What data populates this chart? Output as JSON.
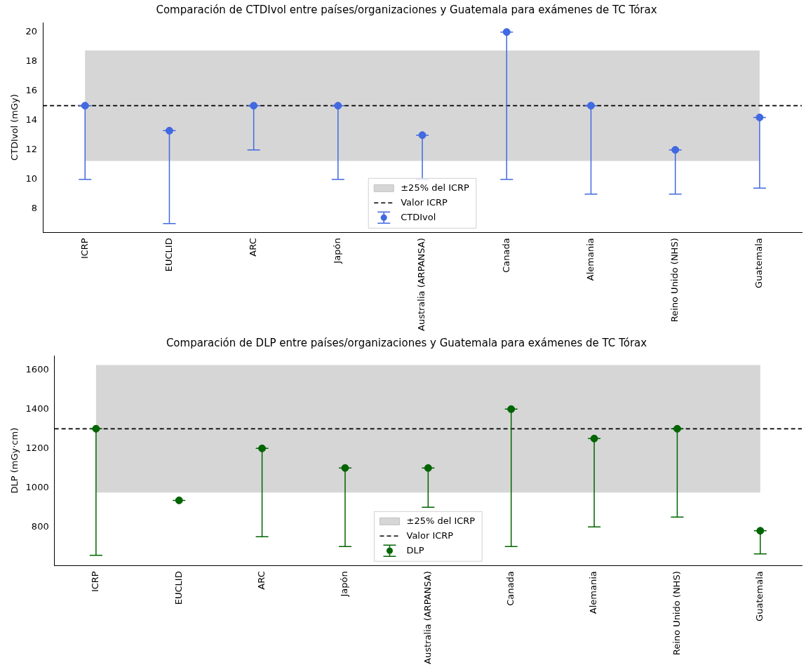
{
  "chart_data": [
    {
      "type": "scatter",
      "title": "Comparación de CTDIvol entre países/organizaciones y Guatemala para exámenes de TC Tórax",
      "ylabel": "CTDIvol (mGy)",
      "categories": [
        "ICRP",
        "EUCLID",
        "ARC",
        "Japón",
        "Australia (ARPANSA)",
        "Canada",
        "Alemania",
        "Reino Unido (NHS)",
        "Guatemala"
      ],
      "series": [
        {
          "name": "CTDIvol",
          "color": "#4169e1",
          "values": [
            15,
            13.3,
            15,
            15,
            13,
            20,
            15,
            12,
            14.2
          ],
          "errors": [
            [
              10,
              15
            ],
            [
              7,
              13.3
            ],
            [
              12,
              15
            ],
            [
              10,
              15
            ],
            [
              10,
              13
            ],
            [
              10,
              20
            ],
            [
              9,
              15
            ],
            [
              9,
              12
            ],
            [
              9.4,
              14.2
            ]
          ]
        }
      ],
      "ylim": [
        6.4,
        20.65
      ],
      "yticks": [
        8,
        10,
        12,
        14,
        16,
        18,
        20
      ],
      "bands": [
        {
          "axis": "y",
          "from": 11.25,
          "to": 18.75,
          "label": "±25% del ICRP",
          "color": "#d6d6d6"
        }
      ],
      "ref_lines": [
        {
          "axis": "y",
          "value": 15,
          "label": "Valor ICRP",
          "color": "#000000",
          "line_style": "dashed"
        }
      ],
      "legend": "bottom",
      "marker": "circle"
    },
    {
      "type": "scatter",
      "title": "Comparación de DLP entre países/organizaciones y Guatemala para exámenes de TC Tórax",
      "ylabel": "DLP (mGy·cm)",
      "categories": [
        "ICRP",
        "EUCLID",
        "ARC",
        "Japón",
        "Australia (ARPANSA)",
        "Canada",
        "Alemania",
        "Reino Unido (NHS)",
        "Guatemala"
      ],
      "series": [
        {
          "name": "DLP",
          "color": "#006400",
          "values": [
            1300,
            935,
            1200,
            1100,
            1100,
            1400,
            1250,
            1300,
            780
          ],
          "errors": [
            [
              655,
              1300
            ],
            [
              935,
              935
            ],
            [
              750,
              1200
            ],
            [
              700,
              1100
            ],
            [
              900,
              1100
            ],
            [
              700,
              1400
            ],
            [
              800,
              1250
            ],
            [
              850,
              1300
            ],
            [
              662,
              780
            ]
          ]
        }
      ],
      "ylim": [
        603,
        1673
      ],
      "yticks": [
        800,
        1000,
        1200,
        1400,
        1600
      ],
      "bands": [
        {
          "axis": "y",
          "from": 975,
          "to": 1625,
          "label": "±25% del ICRP",
          "color": "#d6d6d6"
        }
      ],
      "ref_lines": [
        {
          "axis": "y",
          "value": 1300,
          "label": "Valor ICRP",
          "color": "#000000",
          "line_style": "dashed"
        }
      ],
      "legend": "bottom",
      "marker": "circle"
    }
  ]
}
